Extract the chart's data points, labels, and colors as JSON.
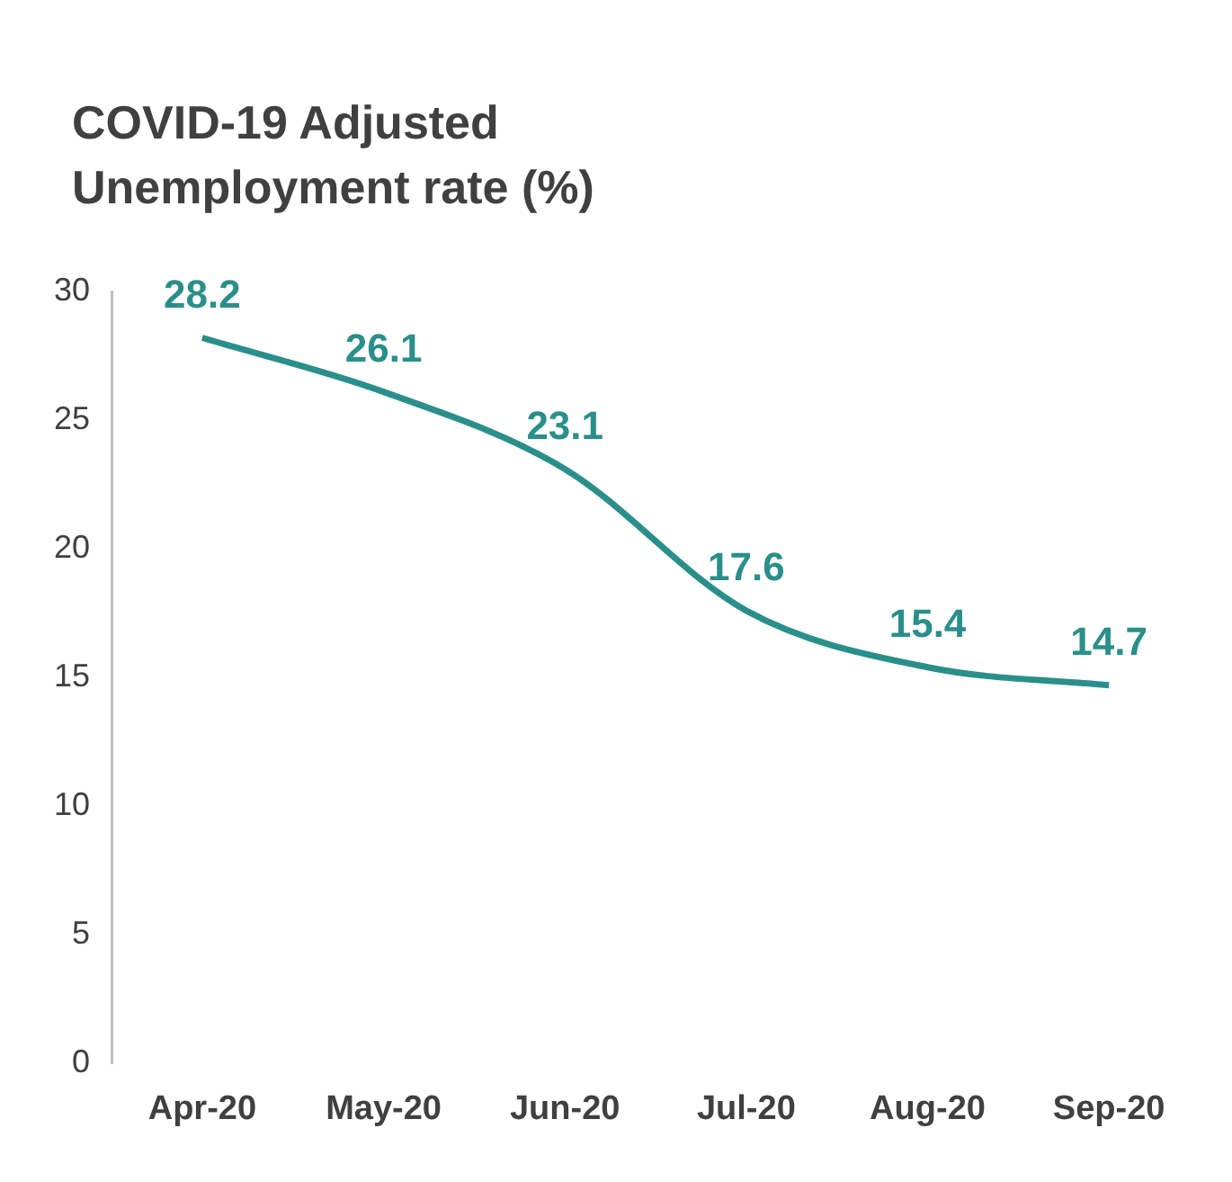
{
  "chart_data": {
    "type": "line",
    "title": "COVID-19 Adjusted Unemployment rate (%)",
    "categories": [
      "Apr-20",
      "May-20",
      "Jun-20",
      "Jul-20",
      "Aug-20",
      "Sep-20"
    ],
    "series": [
      {
        "color": "#2a8f8a",
        "values": [
          28.2,
          26.1,
          23.1,
          17.6,
          15.4,
          14.7
        ]
      }
    ],
    "ylim": [
      0,
      30
    ],
    "yticks": [
      0,
      5,
      10,
      15,
      20,
      25,
      30
    ],
    "grid": false,
    "legend": false,
    "marker": "none",
    "line_style": "solid",
    "data_labels": true
  }
}
